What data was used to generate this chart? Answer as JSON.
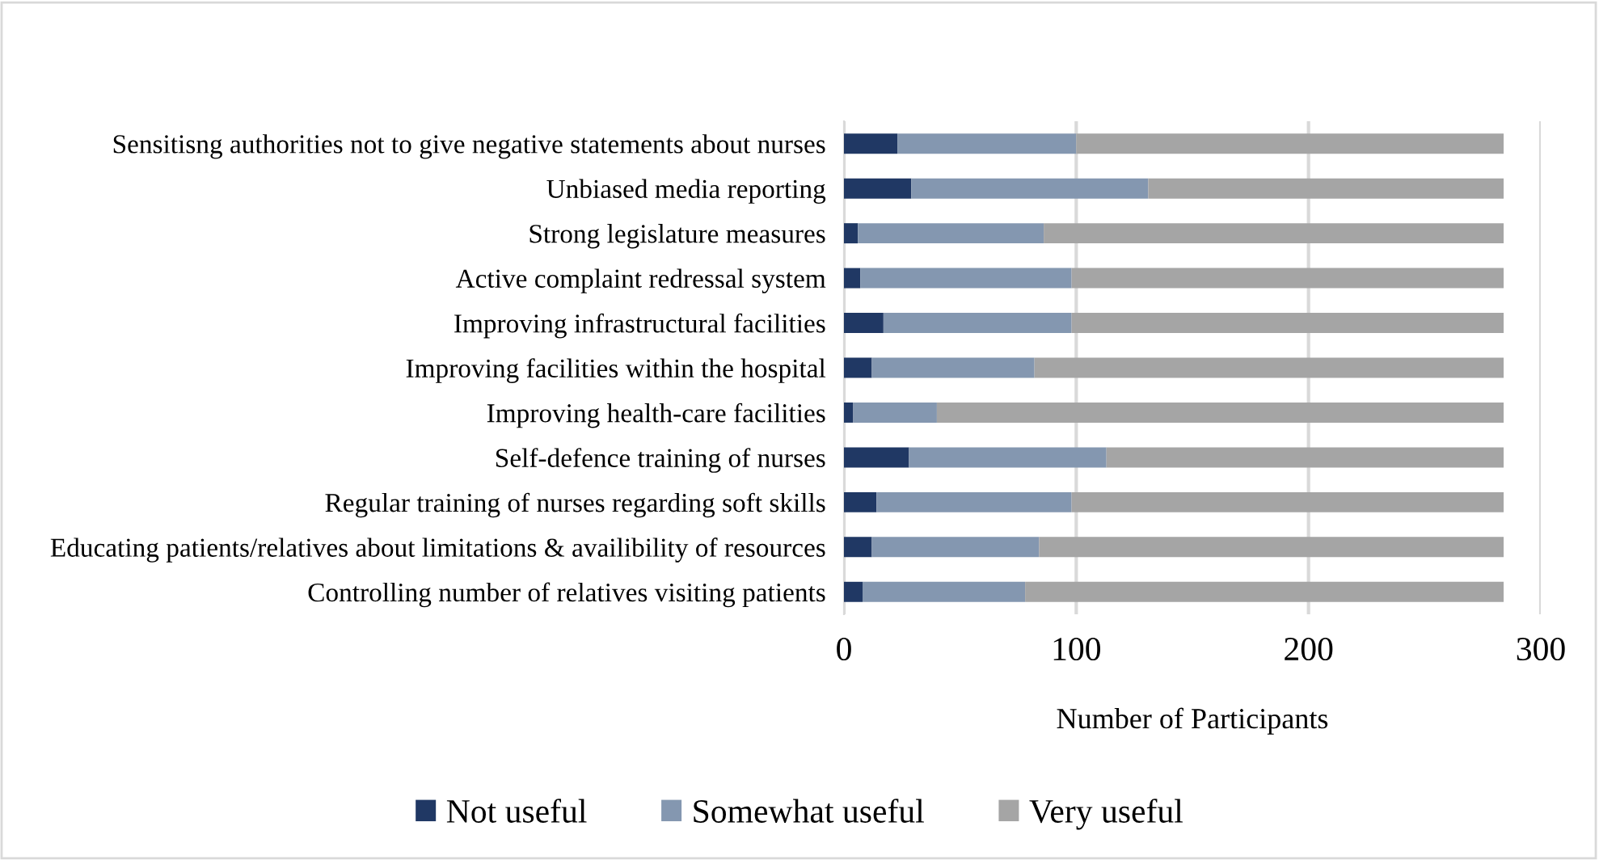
{
  "chart_data": {
    "type": "bar",
    "orientation": "horizontal",
    "stacked": true,
    "categories": [
      "Sensitisng authorities not to give negative statements about nurses",
      "Unbiased media reporting",
      "Strong legislature measures",
      "Active complaint redressal system",
      "Improving infrastructural facilities",
      "Improving facilities within the hospital",
      "Improving health-care facilities",
      "Self-defence training of nurses",
      "Regular training of nurses regarding soft skills",
      "Educating patients/relatives about limitations & availibility of resources",
      "Controlling number of relatives visiting patients"
    ],
    "series": [
      {
        "name": "Not useful",
        "color": "#203864",
        "values": [
          23,
          29,
          6,
          7,
          17,
          12,
          4,
          28,
          14,
          12,
          8
        ]
      },
      {
        "name": "Somewhat useful",
        "color": "#8497b0",
        "values": [
          77,
          102,
          80,
          91,
          81,
          70,
          36,
          85,
          84,
          72,
          70
        ]
      },
      {
        "name": "Very useful",
        "color": "#a5a5a5",
        "values": [
          184,
          153,
          198,
          186,
          186,
          202,
          244,
          171,
          186,
          200,
          206
        ]
      }
    ],
    "xlabel": "Number of Participants",
    "xlim": [
      0,
      300
    ],
    "xticks": [
      0,
      100,
      200,
      300
    ],
    "grid": "x",
    "legend": "bottom"
  }
}
